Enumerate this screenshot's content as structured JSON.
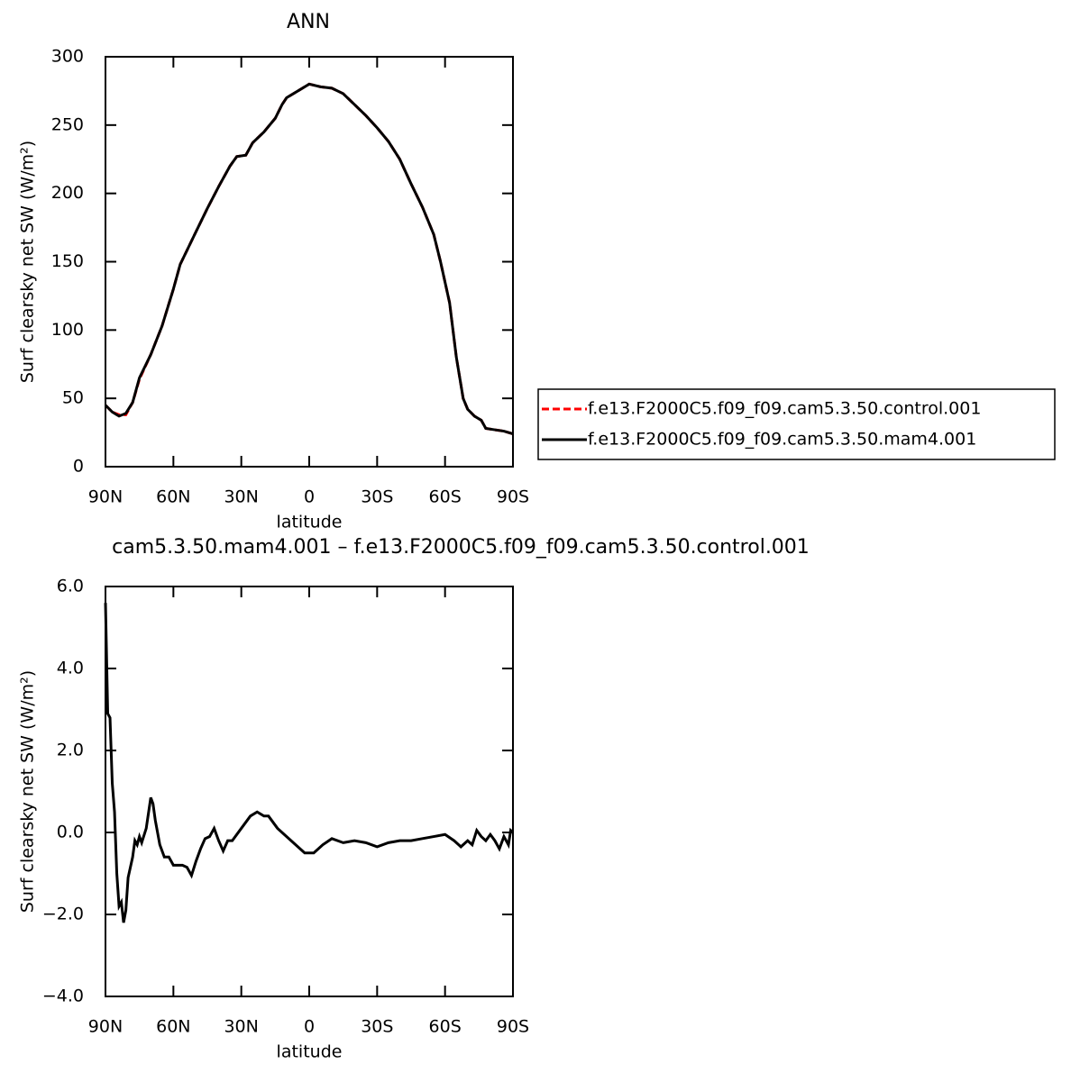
{
  "chart_data": [
    {
      "type": "line",
      "title": "ANN",
      "xlabel": "latitude",
      "ylabel": "Surf clearsky net SW (W/m²)",
      "x": [
        90,
        87,
        84,
        81,
        78,
        75,
        70,
        65,
        60,
        57,
        50,
        45,
        40,
        35,
        32,
        28,
        25,
        20,
        15,
        12,
        10,
        5,
        0,
        -5,
        -10,
        -15,
        -20,
        -25,
        -30,
        -35,
        -40,
        -45,
        -50,
        -55,
        -58,
        -62,
        -65,
        -68,
        -70,
        -73,
        -76,
        -78,
        -82,
        -86,
        -90
      ],
      "series": [
        {
          "name": "f.e13.F2000C5.f09_f09.cam5.3.50.control.001",
          "color": "#ff0000",
          "dash": true,
          "values": [
            45,
            40,
            38,
            38,
            47,
            64,
            82,
            103,
            130,
            148,
            172,
            189,
            205,
            220,
            227,
            228,
            237,
            245,
            255,
            265,
            270,
            275,
            280,
            278,
            277,
            273,
            265,
            257,
            248,
            238,
            225,
            207,
            190,
            170,
            150,
            120,
            80,
            50,
            42,
            37,
            34,
            28,
            27,
            26,
            24
          ]
        },
        {
          "name": "f.e13.F2000C5.f09_f09.cam5.3.50.mam4.001",
          "color": "#000000",
          "dash": false,
          "values": [
            45,
            40,
            37,
            39,
            47,
            65,
            82,
            103,
            130,
            148,
            172,
            189,
            205,
            220,
            227,
            228,
            237,
            245,
            255,
            265,
            270,
            275,
            280,
            278,
            277,
            273,
            265,
            257,
            248,
            238,
            225,
            207,
            190,
            170,
            150,
            120,
            80,
            50,
            42,
            37,
            34,
            28,
            27,
            26,
            24
          ]
        }
      ],
      "xlim": [
        90,
        -90
      ],
      "xticks": [
        {
          "value": 90,
          "label": "90N"
        },
        {
          "value": 60,
          "label": "60N"
        },
        {
          "value": 30,
          "label": "30N"
        },
        0,
        {
          "value": -30,
          "label": "30S"
        },
        {
          "value": -60,
          "label": "60S"
        },
        {
          "value": -90,
          "label": "90S"
        }
      ],
      "ylim": [
        0,
        300
      ],
      "yticks": [
        0,
        50,
        100,
        150,
        200,
        250,
        300
      ],
      "legend": "right"
    },
    {
      "type": "line",
      "title": "cam5.3.50.mam4.001 – f.e13.F2000C5.f09_f09.cam5.3.50.control.001",
      "xlabel": "latitude",
      "ylabel": "Surf clearsky net SW (W/m²)",
      "x": [
        90,
        89,
        88,
        87,
        86,
        85,
        84,
        83,
        82,
        81,
        80,
        78,
        77,
        76,
        75,
        74,
        72,
        70,
        69,
        68,
        66,
        64,
        62,
        60,
        56,
        54,
        52,
        50,
        48,
        46,
        44,
        42,
        40,
        38,
        36,
        34,
        30,
        26,
        23,
        20,
        18,
        14,
        8,
        2,
        -2,
        -6,
        -10,
        -15,
        -20,
        -25,
        -30,
        -35,
        -40,
        -45,
        -50,
        -55,
        -60,
        -64,
        -67,
        -70,
        -72,
        -74,
        -76,
        -78,
        -80,
        -82,
        -84,
        -86,
        -88,
        -89,
        -90
      ],
      "series": [
        {
          "color": "#000000",
          "dash": false,
          "values": [
            5.6,
            2.9,
            2.8,
            1.2,
            0.5,
            -1.0,
            -1.8,
            -1.7,
            -2.2,
            -1.9,
            -1.1,
            -0.6,
            -0.2,
            -0.3,
            -0.1,
            -0.25,
            0.1,
            0.85,
            0.7,
            0.3,
            -0.3,
            -0.6,
            -0.6,
            -0.8,
            -0.8,
            -0.85,
            -1.05,
            -0.7,
            -0.4,
            -0.15,
            -0.1,
            0.1,
            -0.2,
            -0.45,
            -0.2,
            -0.2,
            0.1,
            0.4,
            0.5,
            0.4,
            0.4,
            0.1,
            -0.2,
            -0.5,
            -0.5,
            -0.3,
            -0.15,
            -0.25,
            -0.2,
            -0.25,
            -0.35,
            -0.25,
            -0.2,
            -0.2,
            -0.15,
            -0.1,
            -0.05,
            -0.2,
            -0.35,
            -0.2,
            -0.3,
            0.05,
            -0.1,
            -0.2,
            -0.05,
            -0.2,
            -0.4,
            -0.1,
            -0.3,
            0.05,
            0.0
          ]
        }
      ],
      "xlim": [
        90,
        -90
      ],
      "xticks": [
        {
          "value": 90,
          "label": "90N"
        },
        {
          "value": 60,
          "label": "60N"
        },
        {
          "value": 30,
          "label": "30N"
        },
        0,
        {
          "value": -30,
          "label": "30S"
        },
        {
          "value": -60,
          "label": "60S"
        },
        {
          "value": -90,
          "label": "90S"
        }
      ],
      "ylim": [
        -4,
        6
      ],
      "yticks": [
        {
          "value": -4,
          "label": "−4.0"
        },
        {
          "value": -2,
          "label": "−2.0"
        },
        {
          "value": 0,
          "label": "0.0"
        },
        {
          "value": 2,
          "label": "2.0"
        },
        {
          "value": 4,
          "label": "4.0"
        },
        {
          "value": 6,
          "label": "6.0"
        }
      ]
    }
  ]
}
